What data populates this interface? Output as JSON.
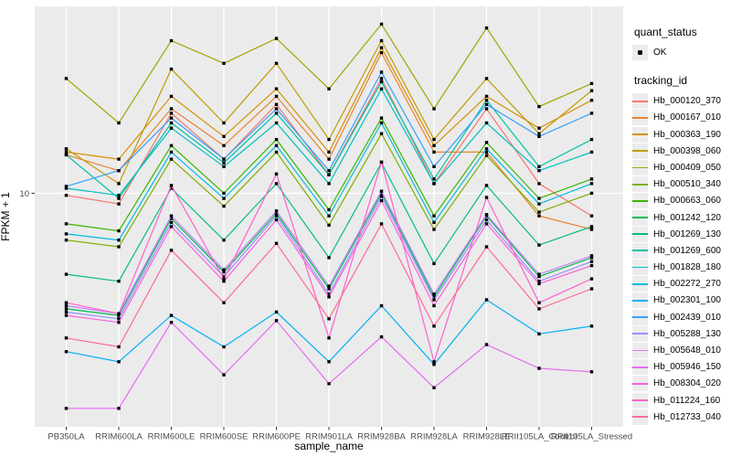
{
  "colors": {
    "panel_bg": "#EBEBEB",
    "gridline": "#FFFFFF",
    "tick_text": "#4D4D4D",
    "axis_title": "#000000",
    "legend_key_bg": "#ECECEC",
    "point": "#000000"
  },
  "legend": {
    "quant_status_title": "quant_status",
    "quant_status_items": [
      {
        "label": "OK",
        "marker": "black-point"
      }
    ],
    "tracking_id_title": "tracking_id"
  },
  "chart_data": {
    "type": "line",
    "title": "",
    "xlabel": "sample_name",
    "ylabel": "FPKM + 1",
    "y_scale": "log10",
    "y_ticks": [
      10
    ],
    "y_tick_labels": [
      "10"
    ],
    "ylim_log10": [
      0,
      1.8
    ],
    "grid": "major-only",
    "legend_position": "right",
    "point_marker": "small black point (quant_status = OK) at every data value",
    "categories": [
      "PB350LA",
      "RRIM600LA",
      "RRIM600LE",
      "RRIM600SE",
      "RRIM600PE",
      "RRIM901LA",
      "RRIM928BA",
      "RRIM928LA",
      "RRIM928LE",
      "RRII105LA_Control",
      "RRII105LA_Stressed"
    ],
    "series": [
      {
        "name": "Hb_000120_370",
        "color": "#F8766D",
        "values": [
          9.8,
          9.0,
          22,
          14,
          24,
          12,
          31,
          11,
          23,
          11,
          8
        ]
      },
      {
        "name": "Hb_000167_010",
        "color": "#EA8331",
        "values": [
          14.6,
          12.5,
          23,
          16,
          26,
          14,
          40,
          15,
          15,
          8,
          7
        ]
      },
      {
        "name": "Hb_000363_190",
        "color": "#D89000",
        "values": [
          15.0,
          14,
          26,
          17.5,
          28,
          15,
          42,
          16,
          26,
          19,
          25
        ]
      },
      {
        "name": "Hb_000398_060",
        "color": "#C09B00",
        "values": [
          15.5,
          11,
          34,
          20,
          36,
          17,
          45,
          17,
          31,
          18,
          27.5
        ]
      },
      {
        "name": "Hb_000409_050",
        "color": "#A3A500",
        "values": [
          31,
          20,
          45,
          36,
          46,
          28,
          53,
          23,
          51,
          23.5,
          29.5
        ]
      },
      {
        "name": "Hb_000510_340",
        "color": "#7CAE00",
        "values": [
          6.3,
          5.9,
          14,
          8.8,
          15,
          7.3,
          18,
          7.0,
          14.5,
          8.3,
          10
        ]
      },
      {
        "name": "Hb_000663_060",
        "color": "#39B600",
        "values": [
          7.4,
          6.9,
          16,
          10,
          17,
          8.5,
          21,
          8.0,
          16.5,
          9.5,
          11.5
        ]
      },
      {
        "name": "Hb_001242_120",
        "color": "#00BB4E",
        "values": [
          3.2,
          3.0,
          7.8,
          4.6,
          8.2,
          3.9,
          10,
          3.6,
          8.0,
          4.4,
          5.3
        ]
      },
      {
        "name": "Hb_001269_130",
        "color": "#00BF7D",
        "values": [
          4.5,
          4.2,
          10.5,
          6.3,
          11,
          5.3,
          13.5,
          5.0,
          10.8,
          6.0,
          7.2
        ]
      },
      {
        "name": "Hb_001269_600",
        "color": "#00C1A3",
        "values": [
          14.6,
          9.5,
          20,
          13.5,
          22,
          12,
          30,
          11.5,
          25,
          13,
          17
        ]
      },
      {
        "name": "Hb_001828_180",
        "color": "#00BFC4",
        "values": [
          10.5,
          9.8,
          19,
          13,
          20,
          11,
          28,
          11,
          20,
          12.5,
          15
        ]
      },
      {
        "name": "Hb_002272_270",
        "color": "#00BAE0",
        "values": [
          6.7,
          6.3,
          15,
          9.5,
          16,
          8.0,
          20,
          7.5,
          15.5,
          9.0,
          11
        ]
      },
      {
        "name": "Hb_002301_100",
        "color": "#00B0F6",
        "values": [
          2.1,
          1.9,
          3.0,
          2.2,
          3.1,
          1.9,
          3.3,
          1.85,
          3.5,
          2.5,
          2.7
        ]
      },
      {
        "name": "Hb_002439_010",
        "color": "#35A2FF",
        "values": [
          10.7,
          12.5,
          21,
          14,
          23,
          12.5,
          33,
          13,
          24,
          17.5,
          22
        ]
      },
      {
        "name": "Hb_005288_130",
        "color": "#9590FF",
        "values": [
          3.1,
          2.9,
          7.5,
          4.4,
          8.0,
          3.7,
          9.7,
          3.5,
          7.7,
          4.2,
          5.1
        ]
      },
      {
        "name": "Hb_005648_010",
        "color": "#C77CFF",
        "values": [
          3.3,
          3.05,
          8.0,
          4.7,
          8.4,
          4.0,
          10.2,
          3.7,
          8.1,
          4.5,
          5.4
        ]
      },
      {
        "name": "Hb_005946_150",
        "color": "#E76BF3",
        "values": [
          1.2,
          1.2,
          2.8,
          1.67,
          2.85,
          1.53,
          2.43,
          1.47,
          2.25,
          1.78,
          1.72
        ]
      },
      {
        "name": "Hb_008304_020",
        "color": "#FA62DB",
        "values": [
          3.0,
          2.8,
          7.2,
          4.2,
          7.7,
          3.6,
          9.3,
          3.3,
          7.4,
          4.1,
          4.9
        ]
      },
      {
        "name": "Hb_011224_160",
        "color": "#FF61CC",
        "values": [
          3.4,
          3.05,
          10.8,
          4.3,
          12.1,
          2.4,
          13.6,
          1.9,
          9.6,
          3.4,
          4.3
        ]
      },
      {
        "name": "Hb_012733_040",
        "color": "#FF6A98",
        "values": [
          2.4,
          2.2,
          5.7,
          3.4,
          6.1,
          2.9,
          7.4,
          2.7,
          5.9,
          3.2,
          3.9
        ]
      }
    ]
  }
}
